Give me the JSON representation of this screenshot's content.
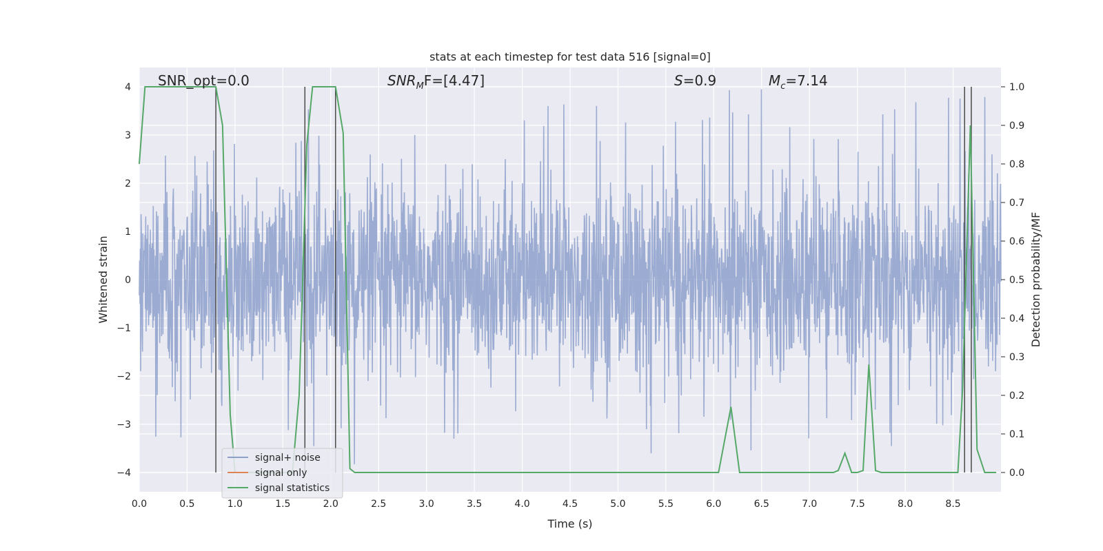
{
  "chart_data": {
    "type": "line",
    "title": "stats at each timestep for test data 516 [signal=0]",
    "xlabel": "Time (s)",
    "ylabel": "Whitened strain",
    "ylabel_right": "Detection probability/MF",
    "xlim": [
      0.0,
      9.0
    ],
    "ylim": [
      -4.4,
      4.4
    ],
    "ylim_right": [
      -0.05,
      1.05
    ],
    "x_ticks": [
      "0.0",
      "0.5",
      "1.0",
      "1.5",
      "2.0",
      "2.5",
      "3.0",
      "3.5",
      "4.0",
      "4.5",
      "5.0",
      "5.5",
      "6.0",
      "6.5",
      "7.0",
      "7.5",
      "8.0",
      "8.5"
    ],
    "x_tick_values": [
      0.0,
      0.5,
      1.0,
      1.5,
      2.0,
      2.5,
      3.0,
      3.5,
      4.0,
      4.5,
      5.0,
      5.5,
      6.0,
      6.5,
      7.0,
      7.5,
      8.0,
      8.5
    ],
    "y_ticks": [
      "4",
      "3",
      "2",
      "1",
      "0",
      "−1",
      "−2",
      "−3",
      "−4"
    ],
    "y_tick_values": [
      4,
      3,
      2,
      1,
      0,
      -1,
      -2,
      -3,
      -4
    ],
    "y_right_ticks": [
      "1.0",
      "0.9",
      "0.8",
      "0.7",
      "0.6",
      "0.5",
      "0.4",
      "0.3",
      "0.2",
      "0.1",
      "0.0"
    ],
    "y_right_tick_values": [
      1.0,
      0.9,
      0.8,
      0.7,
      0.6,
      0.5,
      0.4,
      0.3,
      0.2,
      0.1,
      0.0
    ],
    "grid": true,
    "legend_placement": "lower-left",
    "legend": [
      "signal+ noise",
      "signal only",
      "signal statistics"
    ],
    "annotations": [
      {
        "id": "snr-opt",
        "text": "SNR_opt=0.0"
      },
      {
        "id": "snr-mf",
        "text": "SNR",
        "sub": "M",
        "rest": "F=[4.47]"
      },
      {
        "id": "s-value",
        "text": "S",
        "rest": "=0.9"
      },
      {
        "id": "mc-value",
        "text": "M",
        "sub": "c",
        "rest": "=7.14"
      }
    ],
    "series": [
      {
        "name": "signal+ noise",
        "color": "#8da0cb",
        "typical_abs_max": 2.2,
        "peak_abs_max": 4.0,
        "x_range": [
          0.0,
          9.0
        ]
      },
      {
        "name": "signal only",
        "color": "#dd8452",
        "values": []
      },
      {
        "name": "signal statistics",
        "color": "#55a868",
        "axis": "right",
        "x": [
          0.0,
          0.06,
          0.12,
          0.2,
          0.5,
          0.8,
          0.87,
          0.95,
          1.0,
          1.6,
          1.67,
          1.75,
          1.81,
          2.05,
          2.13,
          2.2,
          2.25,
          6.05,
          6.18,
          6.27,
          7.25,
          7.3,
          7.37,
          7.44,
          7.5,
          7.56,
          7.62,
          7.69,
          7.75,
          8.55,
          8.6,
          8.68,
          8.75,
          8.83,
          8.95
        ],
        "y": [
          0.8,
          1.0,
          1.0,
          1.0,
          1.0,
          1.0,
          0.9,
          0.15,
          0.0,
          0.0,
          0.2,
          0.85,
          1.0,
          1.0,
          0.88,
          0.01,
          0.0,
          0.0,
          0.17,
          0.0,
          0.0,
          0.005,
          0.05,
          0.0,
          0.0,
          0.005,
          0.28,
          0.005,
          0.0,
          0.0,
          0.22,
          0.9,
          0.06,
          0.0,
          0.0
        ]
      }
    ],
    "vertical_lines": [
      0.8,
      1.73,
      2.05,
      8.62,
      8.69
    ]
  }
}
